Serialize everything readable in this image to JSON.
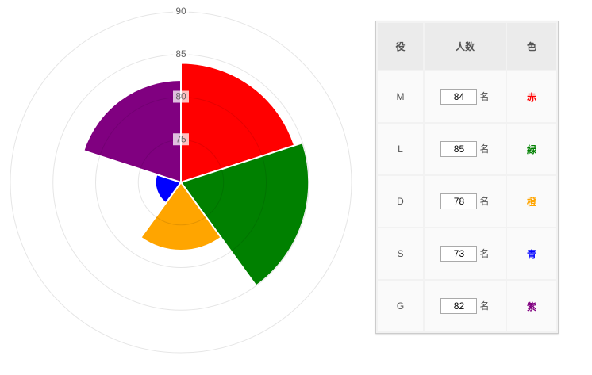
{
  "chart_data": {
    "type": "polar_area",
    "categories": [
      "M",
      "L",
      "D",
      "S",
      "G"
    ],
    "values": [
      84,
      85,
      78,
      73,
      82
    ],
    "colors": [
      "#ff0000",
      "#008000",
      "#ffa500",
      "#0000ff",
      "#800080"
    ],
    "ylim": [
      70,
      90
    ],
    "yticks": [
      75,
      80,
      85,
      90
    ],
    "grid": true
  },
  "table": {
    "headers": [
      "役",
      "人数",
      "色"
    ],
    "unit": "名",
    "color_names": [
      "赤",
      "緑",
      "橙",
      "青",
      "紫"
    ]
  }
}
